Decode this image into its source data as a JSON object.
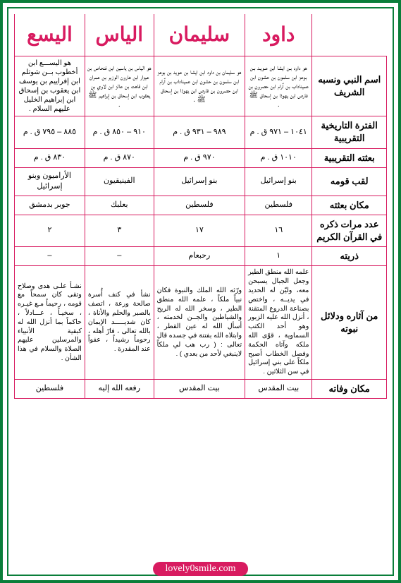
{
  "colors": {
    "frame": "#0a7e3a",
    "border": "#d81b60",
    "header_text": "#d81b60",
    "body_text": "#000000",
    "watermark_bg": "#d81b60",
    "watermark_text": "#ffffff",
    "page_bg": "#ffffff"
  },
  "headers": [
    "",
    "داود",
    "سليمان",
    "الياس",
    "اليسع"
  ],
  "rows": [
    {
      "label": "اسم النبي ونسبه الشريف",
      "cells": [
        "هو داود بـن ايشا ابن عـويـد بـن بوعز ابن سلمون بن حشون ابن عميناداب بن آرام ابن حصرون بن فارص ابن يهوذا بن إسحاق ﷺ .",
        "هو سليمان بن داود ابن ايشا بن عويد بن بوعز ابن سلمون بن حشون ابن عميناداب بن آرام ابن حصرون بن فارص ابن يهوذا بن إسحاق ﷺ .",
        "هو الياس بن ياسين ابن فنحاص بن عيزار ابن هارون الوزير بن عمران ابن قاهت بن عالز ابن لاوي بن يعقوب ابن إسحاق بن إبراهيم ﷺ .",
        "هو اليســـع ابن أخطوب بــن شوتلم ابن إفراييم بن يوسف ابن يعقوب بن إسحاق ابن إبراهيم الخليل عليهم السلام ."
      ]
    },
    {
      "label": "الفترة التاريخية التقريبية",
      "cells": [
        "١٠٤١ – ٩٧١ ق . م",
        "٩٨٩ – ٩٣١ ق . م",
        "٩١٠ – ٨٥٠ ق . م",
        "٨٨٥ – ٧٩٥ ق . م"
      ]
    },
    {
      "label": "بعثته التقريبية",
      "cells": [
        "١٠١٠ ق . م",
        "٩٧٠ ق . م",
        "٨٧٠ ق . م",
        "٨٣٠ ق . م"
      ]
    },
    {
      "label": "لقب قومه",
      "cells": [
        "بنو إسرائيل",
        "بنو إسرائيل",
        "الفينيقيون",
        "الأراميون وبنو إسرائيل"
      ]
    },
    {
      "label": "مكان بعثته",
      "cells": [
        "فلسطين",
        "فلسطين",
        "بعلبك",
        "جوبر بدمشق"
      ]
    },
    {
      "label": "عدد مرات ذكره في القرآن الكريم",
      "cells": [
        "١٦",
        "١٧",
        "٣",
        "٢"
      ]
    },
    {
      "label": "ذريته",
      "cells": [
        "١",
        "رحبعام",
        "–",
        "–"
      ]
    },
    {
      "label": "من آثاره ودلائل نبوته",
      "cells": [
        "علمه الله منطق الطير وجعل الجبال يسبحن معه، وليّن له الحديد في يديــه ، واختص بصناعة الدروع المتقنة ، أنزل الله عليه الزبور وهو أحد الكتب السماوية ، قوّى الله ملكه وآتاه الحكمة وفصل الخطاب أصبح ملكاً على بني إسرائيل في سن الثلاثين .",
        "ورّثه الله الملك والنبوة فكان نبياً ملكاً ، علمه الله منطق الطير ، وسخر الله له الريح والشياطين والجــن لخدمته ، أسأل الله له عين القطر ، وابتلاه الله بفتنة في جسده قال تعالى : ( رب هب لي ملكاً لاينبغي لأحد من بعدي ) .",
        "نشأ في كنف أُسرة صالحة ورعة ، اتصف بالصبر والحلم والأناة ، كان شديـــــد الإيمان بالله تعالى ، فارّ أهله ، رحوماً رشيداً ، عفواً عند المقدرة .",
        "نشـأ علـى هدى وصلاح وتقى كان سمحاً مع قومه ، رحيماً مـع غيـره ، سخيـاً ، عـــادلاً ، حاكماً بما أنزل الله له كبقية الأنبياء والمرسلين عليهم الصلاة والسلام في هذا الشأن ."
      ]
    },
    {
      "label": "مكان وفاته",
      "cells": [
        "بيت المقدس",
        "بيت المقدس",
        "رفعه الله إليه",
        "فلسطين"
      ]
    }
  ],
  "watermark": "lovely0smile.com"
}
